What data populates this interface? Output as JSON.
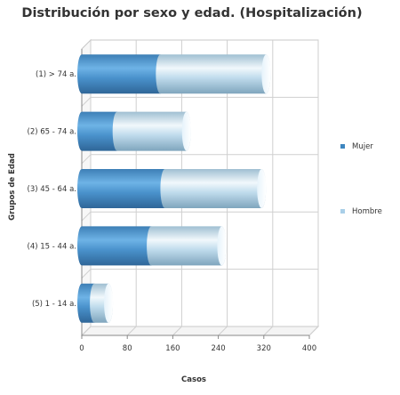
{
  "chart_data": {
    "type": "bar",
    "orientation": "horizontal",
    "stacked": true,
    "style": "3d-cylinder",
    "title": "Distribución por sexo y edad. (Hospitalización)",
    "xlabel": "Casos",
    "ylabel": "Grupos de Edad",
    "categories": [
      "(1) > 74 a.",
      "(2) 65 - 74 a.",
      "(3) 45 - 64 a.",
      "(4) 15 - 44 a.",
      "(5) 1 - 14 a."
    ],
    "xlim": [
      0,
      400
    ],
    "xticks": [
      "0",
      "80",
      "160",
      "240",
      "320",
      "400"
    ],
    "grid": true,
    "legend": "right",
    "series": [
      {
        "name": "Mujer",
        "values": [
          138,
          62,
          146,
          122,
          22
        ],
        "color": "#3d86c0"
      },
      {
        "name": "Hombre",
        "values": [
          186,
          122,
          170,
          124,
          25
        ],
        "color": "#a9cfe8"
      }
    ]
  }
}
